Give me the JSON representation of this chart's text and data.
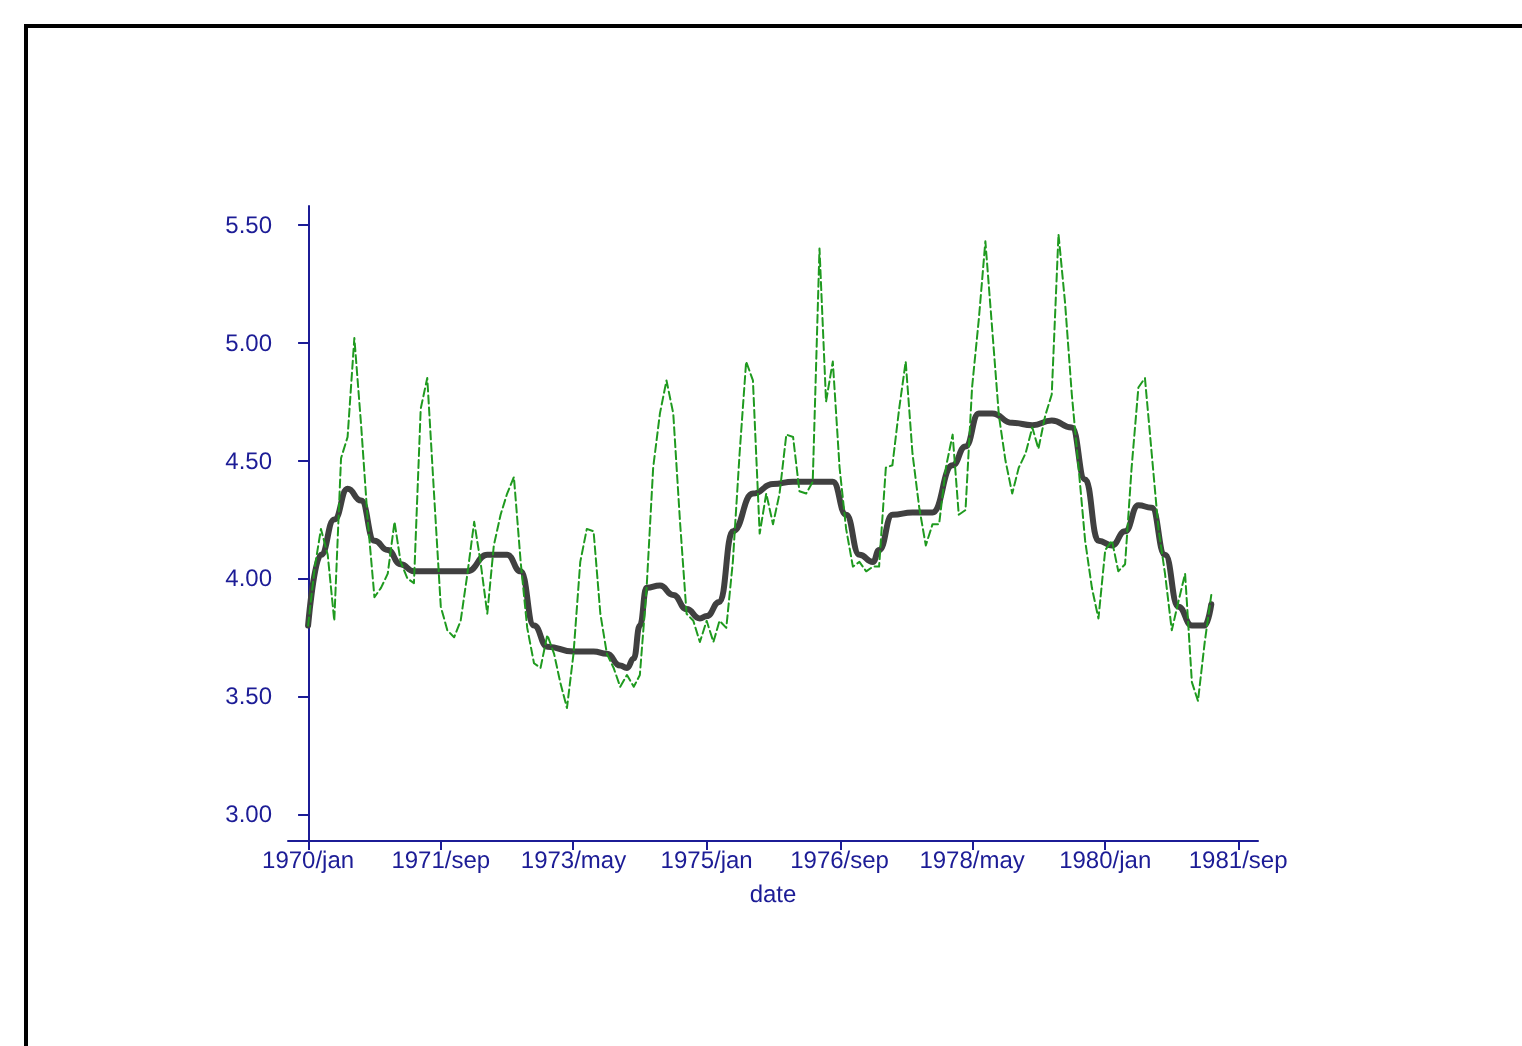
{
  "chart_data": {
    "type": "line",
    "xlabel": "date",
    "xlim": [
      "1969-10",
      "1981-12"
    ],
    "xticks": [
      {
        "value": "1970-01",
        "label": "1970/jan"
      },
      {
        "value": "1971-09",
        "label": "1971/sep"
      },
      {
        "value": "1973-05",
        "label": "1973/may"
      },
      {
        "value": "1975-01",
        "label": "1975/jan"
      },
      {
        "value": "1976-09",
        "label": "1976/sep"
      },
      {
        "value": "1978-05",
        "label": "1978/may"
      },
      {
        "value": "1980-01",
        "label": "1980/jan"
      },
      {
        "value": "1981-09",
        "label": "1981/sep"
      }
    ],
    "ylim": [
      2.89,
      5.58
    ],
    "yticks": [
      {
        "value": 3,
        "label": "3.00"
      },
      {
        "value": 3.5,
        "label": "3.50"
      },
      {
        "value": 4,
        "label": "4.00"
      },
      {
        "value": 4.5,
        "label": "4.50"
      },
      {
        "value": 5,
        "label": "5.00"
      },
      {
        "value": 5.5,
        "label": "5.50"
      }
    ],
    "grid": false,
    "marker": "none",
    "series": [
      {
        "color": "#1f9a1f",
        "line_style": "dashed",
        "x": [
          "1970-01",
          "1970-02",
          "1970-03",
          "1970-04",
          "1970-05",
          "1970-06",
          "1970-07",
          "1970-08",
          "1970-09",
          "1970-10",
          "1970-11",
          "1970-12",
          "1971-01",
          "1971-02",
          "1971-03",
          "1971-04",
          "1971-05",
          "1971-06",
          "1971-07",
          "1971-08",
          "1971-09",
          "1971-10",
          "1971-11",
          "1971-12",
          "1972-01",
          "1972-02",
          "1972-03",
          "1972-04",
          "1972-05",
          "1972-06",
          "1972-07",
          "1972-08",
          "1972-09",
          "1972-10",
          "1972-11",
          "1972-12",
          "1973-01",
          "1973-02",
          "1973-03",
          "1973-04",
          "1973-05",
          "1973-06",
          "1973-07",
          "1973-08",
          "1973-09",
          "1973-10",
          "1973-11",
          "1973-12",
          "1974-01",
          "1974-02",
          "1974-03",
          "1974-04",
          "1974-05",
          "1974-06",
          "1974-07",
          "1974-08",
          "1974-09",
          "1974-10",
          "1974-11",
          "1974-12",
          "1975-01",
          "1975-02",
          "1975-03",
          "1975-04",
          "1975-05",
          "1975-06",
          "1975-07",
          "1975-08",
          "1975-09",
          "1975-10",
          "1975-11",
          "1975-12",
          "1976-01",
          "1976-02",
          "1976-03",
          "1976-04",
          "1976-05",
          "1976-06",
          "1976-07",
          "1976-08",
          "1976-09",
          "1976-10",
          "1976-11",
          "1976-12",
          "1977-01",
          "1977-02",
          "1977-03",
          "1977-04",
          "1977-05",
          "1977-06",
          "1977-07",
          "1977-08",
          "1977-09",
          "1977-10",
          "1977-11",
          "1977-12",
          "1978-01",
          "1978-02",
          "1978-03",
          "1978-04",
          "1978-05",
          "1978-06",
          "1978-07",
          "1978-08",
          "1978-09",
          "1978-10",
          "1978-11",
          "1978-12",
          "1979-01",
          "1979-02",
          "1979-03",
          "1979-04",
          "1979-05",
          "1979-06",
          "1979-07",
          "1979-08",
          "1979-09",
          "1979-10",
          "1979-11",
          "1979-12",
          "1980-01",
          "1980-02",
          "1980-03",
          "1980-04",
          "1980-05",
          "1980-06",
          "1980-07",
          "1980-08",
          "1980-09",
          "1980-10",
          "1980-11",
          "1980-12",
          "1981-01",
          "1981-02",
          "1981-03",
          "1981-04",
          "1981-05"
        ],
        "values": [
          3.8,
          4.05,
          4.21,
          4.1,
          3.82,
          4.51,
          4.6,
          5.02,
          4.65,
          4.25,
          3.92,
          3.96,
          4.02,
          4.24,
          4.07,
          4.0,
          3.98,
          4.72,
          4.85,
          4.36,
          3.88,
          3.78,
          3.75,
          3.82,
          4.02,
          4.24,
          4.07,
          3.85,
          4.14,
          4.27,
          4.36,
          4.43,
          4.07,
          3.79,
          3.64,
          3.62,
          3.76,
          3.68,
          3.56,
          3.45,
          3.68,
          4.07,
          4.21,
          4.2,
          3.85,
          3.68,
          3.62,
          3.54,
          3.59,
          3.54,
          3.59,
          3.96,
          4.47,
          4.7,
          4.84,
          4.7,
          4.24,
          3.85,
          3.82,
          3.73,
          3.82,
          3.73,
          3.82,
          3.79,
          4.07,
          4.53,
          4.92,
          4.84,
          4.19,
          4.36,
          4.23,
          4.36,
          4.61,
          4.6,
          4.37,
          4.36,
          4.41,
          5.4,
          4.75,
          4.92,
          4.47,
          4.21,
          4.05,
          4.07,
          4.03,
          4.05,
          4.05,
          4.47,
          4.48,
          4.72,
          4.92,
          4.53,
          4.3,
          4.14,
          4.23,
          4.23,
          4.47,
          4.61,
          4.27,
          4.29,
          4.81,
          5.1,
          5.43,
          5.06,
          4.69,
          4.5,
          4.36,
          4.47,
          4.53,
          4.64,
          4.55,
          4.69,
          4.78,
          5.46,
          5.17,
          4.78,
          4.47,
          4.16,
          3.96,
          3.83,
          4.12,
          4.16,
          4.03,
          4.06,
          4.47,
          4.81,
          4.85,
          4.53,
          4.21,
          4.02,
          3.78,
          3.9,
          4.02,
          3.56,
          3.48,
          3.73,
          3.93
        ]
      },
      {
        "color": "#404040",
        "line_style": "solid",
        "x": [
          "1970-01",
          "1970-03",
          "1970-05",
          "1970-07",
          "1970-09",
          "1970-11",
          "1971-01",
          "1971-03",
          "1971-05",
          "1972-01",
          "1972-04",
          "1972-07",
          "1972-09",
          "1972-11",
          "1973-01",
          "1973-05",
          "1973-08",
          "1973-10",
          "1973-12",
          "1974-01",
          "1974-02",
          "1974-03",
          "1974-04",
          "1974-06",
          "1974-08",
          "1974-10",
          "1974-12",
          "1975-01",
          "1975-03",
          "1975-05",
          "1975-08",
          "1975-11",
          "1976-02",
          "1976-08",
          "1976-10",
          "1976-12",
          "1977-02",
          "1977-03",
          "1977-05",
          "1977-08",
          "1977-11",
          "1978-02",
          "1978-04",
          "1978-06",
          "1978-08",
          "1978-11",
          "1979-02",
          "1979-05",
          "1979-08",
          "1979-10",
          "1979-12",
          "1980-02",
          "1980-04",
          "1980-06",
          "1980-08",
          "1980-10",
          "1980-12",
          "1981-02",
          "1981-04",
          "1981-05"
        ],
        "values": [
          3.8,
          4.1,
          4.25,
          4.38,
          4.33,
          4.16,
          4.12,
          4.06,
          4.03,
          4.03,
          4.1,
          4.1,
          4.03,
          3.8,
          3.71,
          3.69,
          3.69,
          3.68,
          3.63,
          3.62,
          3.66,
          3.8,
          3.96,
          3.97,
          3.93,
          3.87,
          3.83,
          3.84,
          3.9,
          4.2,
          4.36,
          4.4,
          4.41,
          4.41,
          4.27,
          4.1,
          4.07,
          4.12,
          4.27,
          4.28,
          4.28,
          4.48,
          4.56,
          4.7,
          4.7,
          4.66,
          4.65,
          4.67,
          4.64,
          4.42,
          4.16,
          4.14,
          4.2,
          4.31,
          4.3,
          4.1,
          3.88,
          3.8,
          3.8,
          3.89
        ]
      }
    ]
  }
}
